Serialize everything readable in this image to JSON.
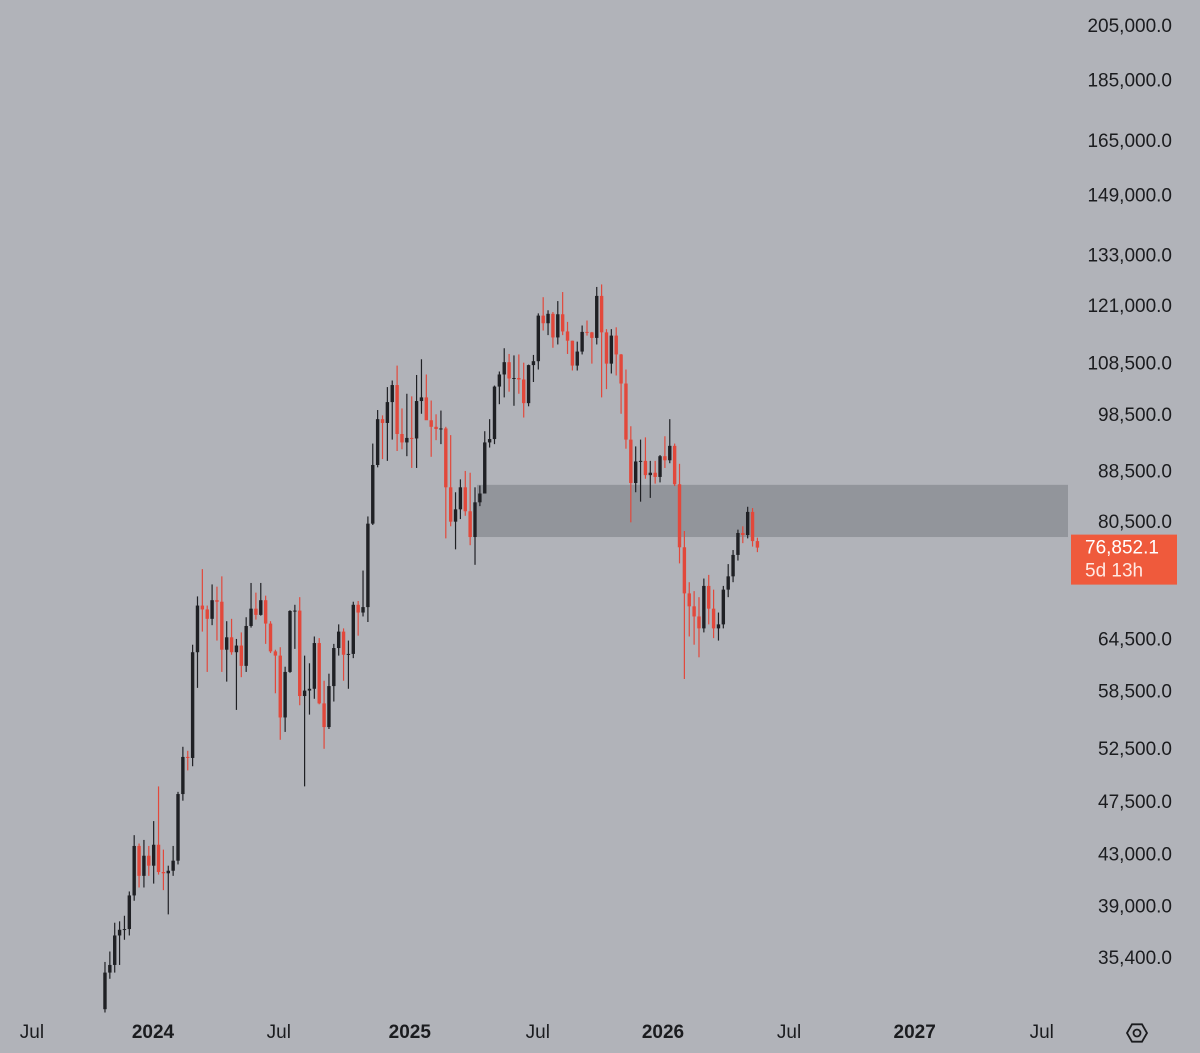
{
  "chart_data": {
    "type": "candlestick",
    "log_scale": true,
    "grid": false,
    "up_color": "#1f2024",
    "down_color": "#e2483b",
    "zone_color": "#8d8f95",
    "last_price_color": "#ef5a3c",
    "xlim": [
      -21.56,
      198.2
    ],
    "xticks": [
      {
        "value": -15.0,
        "label": "Jul"
      },
      {
        "value": 9.86,
        "label": "2024"
      },
      {
        "value": 35.7,
        "label": "Jul"
      },
      {
        "value": 62.6,
        "label": "2025"
      },
      {
        "value": 88.9,
        "label": "Jul"
      },
      {
        "value": 114.6,
        "label": "2026"
      },
      {
        "value": 140.5,
        "label": "Jul"
      },
      {
        "value": 166.3,
        "label": "2027"
      },
      {
        "value": 192.4,
        "label": "Jul"
      }
    ],
    "ylim": [
      31850,
      215700
    ],
    "yticks": [
      {
        "value": 205000,
        "label": "205,000.0"
      },
      {
        "value": 185000,
        "label": "185,000.0"
      },
      {
        "value": 165000,
        "label": "165,000.0"
      },
      {
        "value": 149000,
        "label": "149,000.0"
      },
      {
        "value": 133000,
        "label": "133,000.0"
      },
      {
        "value": 121000,
        "label": "121,000.0"
      },
      {
        "value": 108500,
        "label": "108,500.0"
      },
      {
        "value": 98500,
        "label": "98,500.0"
      },
      {
        "value": 88500,
        "label": "88,500.0"
      },
      {
        "value": 80500,
        "label": "80,500.0"
      },
      {
        "value": 64500,
        "label": "64,500.0"
      },
      {
        "value": 58500,
        "label": "58,500.0"
      },
      {
        "value": 52500,
        "label": "52,500.0"
      },
      {
        "value": 47500,
        "label": "47,500.0"
      },
      {
        "value": 43000,
        "label": "43,000.0"
      },
      {
        "value": 39000,
        "label": "39,000.0"
      },
      {
        "value": 35400,
        "label": "35,400.0"
      }
    ],
    "zone": {
      "start": 76.4,
      "low": 78400,
      "high": 86500
    },
    "last_price_label": "76,852.1",
    "countdown": "5d 13h",
    "open": [
      32200,
      34500,
      35000,
      37000,
      37400,
      37450,
      39900,
      43800,
      41400,
      43000,
      42200,
      43900,
      41700,
      41600,
      41800,
      42600,
      48300,
      51800,
      51700,
      63100,
      68900,
      68400,
      67200,
      69600,
      69400,
      63400,
      64900,
      63100,
      63900,
      61500,
      66300,
      68500,
      67700,
      69600,
      66600,
      63200,
      62700,
      55800,
      60800,
      68200,
      68250,
      58100,
      58700,
      58900,
      64200,
      57300,
      54800,
      59200,
      63600,
      65600,
      62800,
      62900,
      69000,
      68000,
      68700,
      80400,
      89800,
      97900,
      97200,
      101100,
      104400,
      95200,
      93700,
      94500,
      94400,
      101300,
      102000,
      97700,
      96500,
      96100,
      96200,
      86100,
      80700,
      82600,
      86100,
      82300,
      78400,
      83700,
      85100,
      93700,
      94300,
      104100,
      106500,
      109000,
      105700,
      105800,
      105500,
      100900,
      108400,
      109200,
      119000,
      117300,
      119400,
      114200,
      119300,
      115500,
      113500,
      108300,
      111200,
      115400,
      115300,
      114100,
      123500,
      115300,
      108700,
      114600,
      110600,
      104700,
      94200,
      86800,
      90400,
      90500,
      88100,
      88500,
      87800,
      91300,
      90600,
      93100,
      86600,
      76900,
      70500,
      68800,
      67500,
      66000,
      71500,
      68500,
      66000,
      66500,
      71000,
      72800,
      75800,
      79000,
      78700,
      82200,
      77800
    ],
    "high": [
      35200,
      35900,
      37900,
      38000,
      38400,
      40200,
      44700,
      44000,
      44300,
      43800,
      45900,
      49000,
      43500,
      42200,
      43800,
      48500,
      52800,
      52400,
      64000,
      70100,
      73800,
      68900,
      71700,
      71400,
      72800,
      66900,
      67200,
      64700,
      65500,
      67400,
      71900,
      70600,
      71900,
      70200,
      66900,
      63400,
      63700,
      61400,
      68300,
      69000,
      70000,
      62700,
      61800,
      65000,
      64800,
      59800,
      60600,
      64100,
      66500,
      66000,
      64500,
      69400,
      69500,
      73600,
      81500,
      93500,
      99600,
      98600,
      104000,
      105300,
      108300,
      99900,
      102700,
      102200,
      106400,
      109600,
      106500,
      101400,
      98800,
      99500,
      96500,
      95000,
      85300,
      87400,
      88800,
      88500,
      86100,
      86400,
      95700,
      97900,
      104300,
      107100,
      111900,
      110700,
      110400,
      110600,
      108900,
      108500,
      110500,
      119500,
      123200,
      120200,
      119800,
      122300,
      124400,
      117600,
      113500,
      113300,
      116800,
      117900,
      115400,
      125600,
      126200,
      116000,
      116000,
      116400,
      110700,
      107500,
      96600,
      93000,
      94200,
      94600,
      90500,
      90500,
      91500,
      94800,
      97900,
      93500,
      90000,
      79300,
      72000,
      70800,
      70000,
      72500,
      73000,
      71000,
      68000,
      71500,
      74500,
      76500,
      79500,
      80000,
      83000,
      82800,
      78300
    ],
    "low": [
      32000,
      34100,
      34500,
      35000,
      36700,
      37000,
      39500,
      40500,
      40500,
      41400,
      40800,
      41500,
      40300,
      38500,
      41400,
      42300,
      47700,
      50500,
      50900,
      59000,
      65600,
      60800,
      66400,
      64500,
      60800,
      59700,
      62800,
      56600,
      60200,
      60800,
      66100,
      67100,
      67600,
      64100,
      63000,
      58400,
      53500,
      54300,
      60700,
      63500,
      57100,
      49000,
      56100,
      57800,
      57200,
      52600,
      54600,
      57500,
      62700,
      59800,
      58900,
      62400,
      65100,
      67500,
      66800,
      80200,
      89400,
      90800,
      90500,
      94200,
      92200,
      92500,
      91300,
      89300,
      89300,
      98900,
      97800,
      91200,
      94100,
      93400,
      78200,
      80000,
      76600,
      81100,
      81600,
      77200,
      74400,
      83100,
      85100,
      92800,
      93400,
      100700,
      102000,
      103100,
      100400,
      102700,
      98200,
      100300,
      105000,
      107500,
      115700,
      114700,
      112000,
      112700,
      114700,
      110700,
      107300,
      107300,
      110600,
      114600,
      108700,
      112700,
      102000,
      103600,
      106700,
      106300,
      98900,
      92600,
      80600,
      85300,
      83800,
      87500,
      84400,
      86700,
      86900,
      89300,
      90100,
      86300,
      74600,
      60000,
      65000,
      64000,
      62500,
      65500,
      66500,
      64800,
      64500,
      66000,
      70000,
      72000,
      75000,
      77500,
      78200,
      77000,
      76200
    ],
    "close": [
      34500,
      35000,
      37000,
      37400,
      37450,
      39900,
      43800,
      41400,
      43000,
      42200,
      43900,
      41700,
      41600,
      41800,
      42600,
      48300,
      51800,
      51700,
      63100,
      68900,
      68400,
      67200,
      69600,
      69400,
      63400,
      64900,
      63100,
      63900,
      61500,
      66300,
      68500,
      67700,
      69600,
      66600,
      63200,
      62700,
      55800,
      60800,
      68200,
      68250,
      58100,
      58700,
      58900,
      64200,
      57300,
      54800,
      59200,
      63600,
      65600,
      62800,
      62900,
      69000,
      68000,
      68700,
      80400,
      89800,
      97900,
      97200,
      101100,
      104400,
      95200,
      93700,
      94500,
      94400,
      101300,
      102000,
      97700,
      96500,
      96100,
      96200,
      86100,
      80700,
      82600,
      86100,
      82300,
      78400,
      83700,
      85100,
      93700,
      94300,
      104100,
      106500,
      109000,
      105700,
      105800,
      105500,
      100900,
      108400,
      109200,
      119000,
      117300,
      119400,
      114200,
      119300,
      115500,
      113500,
      108300,
      111200,
      115400,
      115300,
      114100,
      123500,
      115300,
      108700,
      114600,
      110600,
      104700,
      94200,
      86800,
      90400,
      90500,
      88100,
      88500,
      87800,
      91300,
      90600,
      93100,
      86600,
      76900,
      70500,
      68800,
      67500,
      66000,
      71500,
      68500,
      66000,
      66500,
      71000,
      72800,
      75800,
      79000,
      78700,
      82200,
      77800,
      76852.1
    ]
  }
}
